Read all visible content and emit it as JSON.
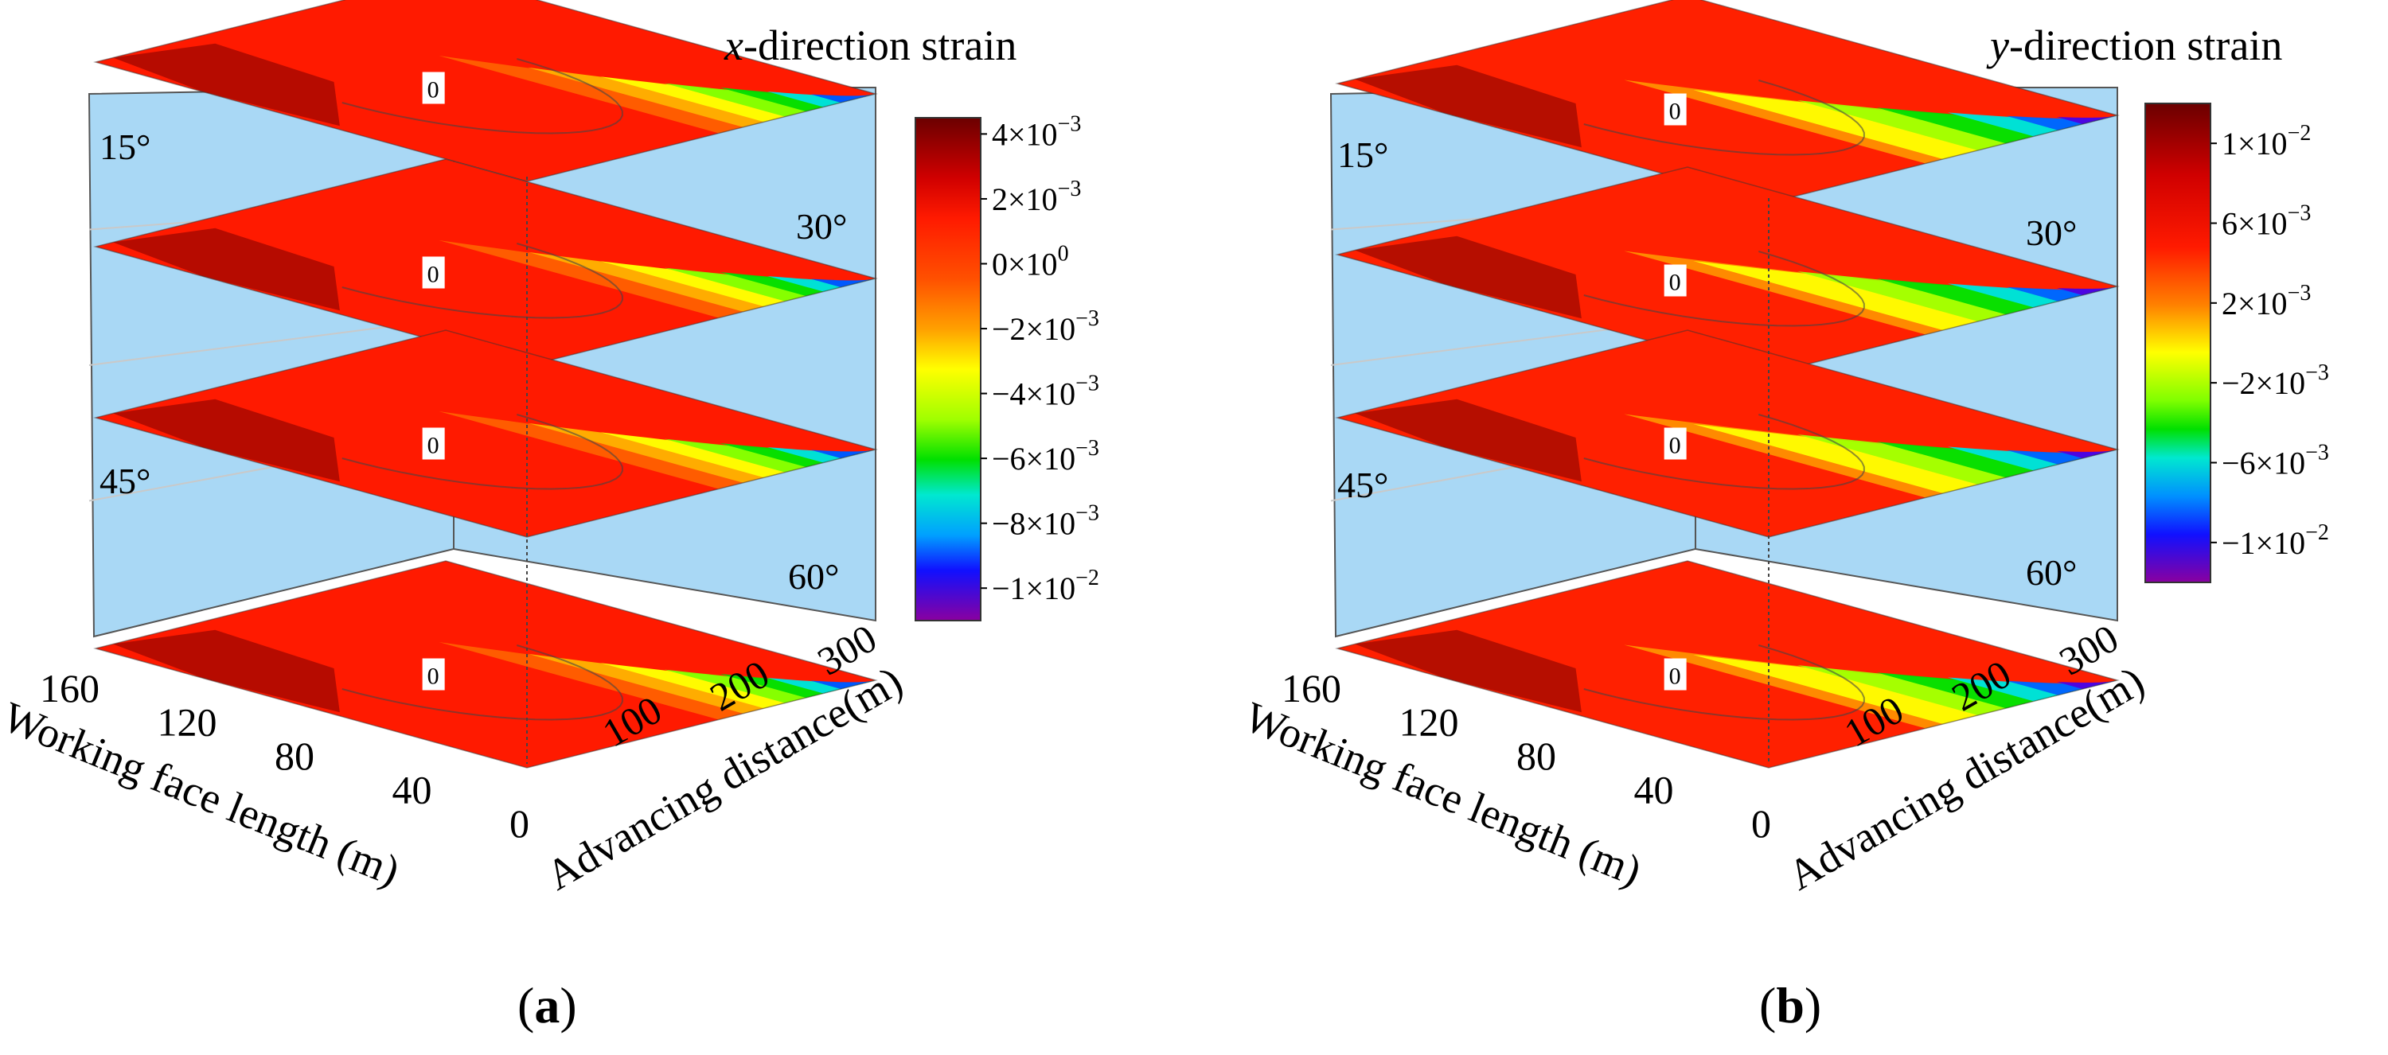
{
  "chart_data": [
    {
      "type": "contour-3d-stack",
      "panel_label": "(a)",
      "panel_letter": "a",
      "title_var": "x",
      "title_rest": "-direction strain",
      "xlabel": "Working face length (m)",
      "ylabel": "Advancing distance(m)",
      "x_ticks": [
        "160",
        "120",
        "80",
        "40",
        "0"
      ],
      "y_ticks": [
        "100",
        "200",
        "300"
      ],
      "layers": [
        {
          "angle": "15°",
          "contour_label": "0"
        },
        {
          "angle": "30°",
          "contour_label": "0"
        },
        {
          "angle": "45°",
          "contour_label": "0"
        },
        {
          "angle": "60°",
          "contour_label": "0"
        }
      ],
      "colorbar": {
        "min": -0.011,
        "max": 0.0045,
        "ticks": [
          {
            "value": 0.004,
            "base": "4×10",
            "exp": "−3"
          },
          {
            "value": 0.002,
            "base": "2×10",
            "exp": "−3"
          },
          {
            "value": 0.0,
            "base": "0×10",
            "exp": "0"
          },
          {
            "value": -0.002,
            "base": "−2×10",
            "exp": "−3"
          },
          {
            "value": -0.004,
            "base": "−4×10",
            "exp": "−3"
          },
          {
            "value": -0.006,
            "base": "−6×10",
            "exp": "−3"
          },
          {
            "value": -0.008,
            "base": "−8×10",
            "exp": "−3"
          },
          {
            "value": -0.01,
            "base": "−1×10",
            "exp": "−2"
          }
        ]
      }
    },
    {
      "type": "contour-3d-stack",
      "panel_label": "(b)",
      "panel_letter": "b",
      "title_var": "y",
      "title_rest": "-direction strain",
      "xlabel": "Working face length (m)",
      "ylabel": "Advancing distance(m)",
      "x_ticks": [
        "160",
        "120",
        "80",
        "40",
        "0"
      ],
      "y_ticks": [
        "100",
        "200",
        "300"
      ],
      "layers": [
        {
          "angle": "15°",
          "contour_label": "0"
        },
        {
          "angle": "30°",
          "contour_label": "0"
        },
        {
          "angle": "45°",
          "contour_label": "0"
        },
        {
          "angle": "60°",
          "contour_label": "0"
        }
      ],
      "colorbar": {
        "min": -0.012,
        "max": 0.012,
        "ticks": [
          {
            "value": 0.01,
            "base": "1×10",
            "exp": "−2"
          },
          {
            "value": 0.006,
            "base": "6×10",
            "exp": "−3"
          },
          {
            "value": 0.002,
            "base": "2×10",
            "exp": "−3"
          },
          {
            "value": -0.002,
            "base": "−2×10",
            "exp": "−3"
          },
          {
            "value": -0.006,
            "base": "−6×10",
            "exp": "−3"
          },
          {
            "value": -0.01,
            "base": "−1×10",
            "exp": "−2"
          }
        ]
      }
    }
  ],
  "colors": {
    "wall": "#a9d8f5",
    "red": "#ff1a00",
    "darkred": "#7a0000",
    "orange": "#ff8a00",
    "yellow": "#ffff00",
    "green": "#22dd00",
    "cyan": "#00e0ff",
    "blue": "#0030ff",
    "violet": "#8a00d0"
  }
}
